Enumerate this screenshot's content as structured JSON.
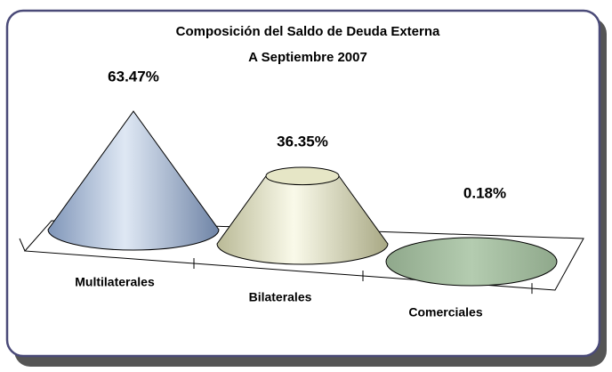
{
  "chart_data": {
    "type": "cone",
    "title": "Composición del Saldo de Deuda Externa",
    "subtitle": "A Septiembre 2007",
    "categories": [
      "Multilaterales",
      "Bilaterales",
      "Comerciales"
    ],
    "values": [
      63.47,
      36.35,
      0.18
    ],
    "value_labels": [
      "63.47%",
      "36.35%",
      "0.18%"
    ],
    "colors": [
      "#b4c6de",
      "#e6e6c6",
      "#a4bca0"
    ]
  }
}
